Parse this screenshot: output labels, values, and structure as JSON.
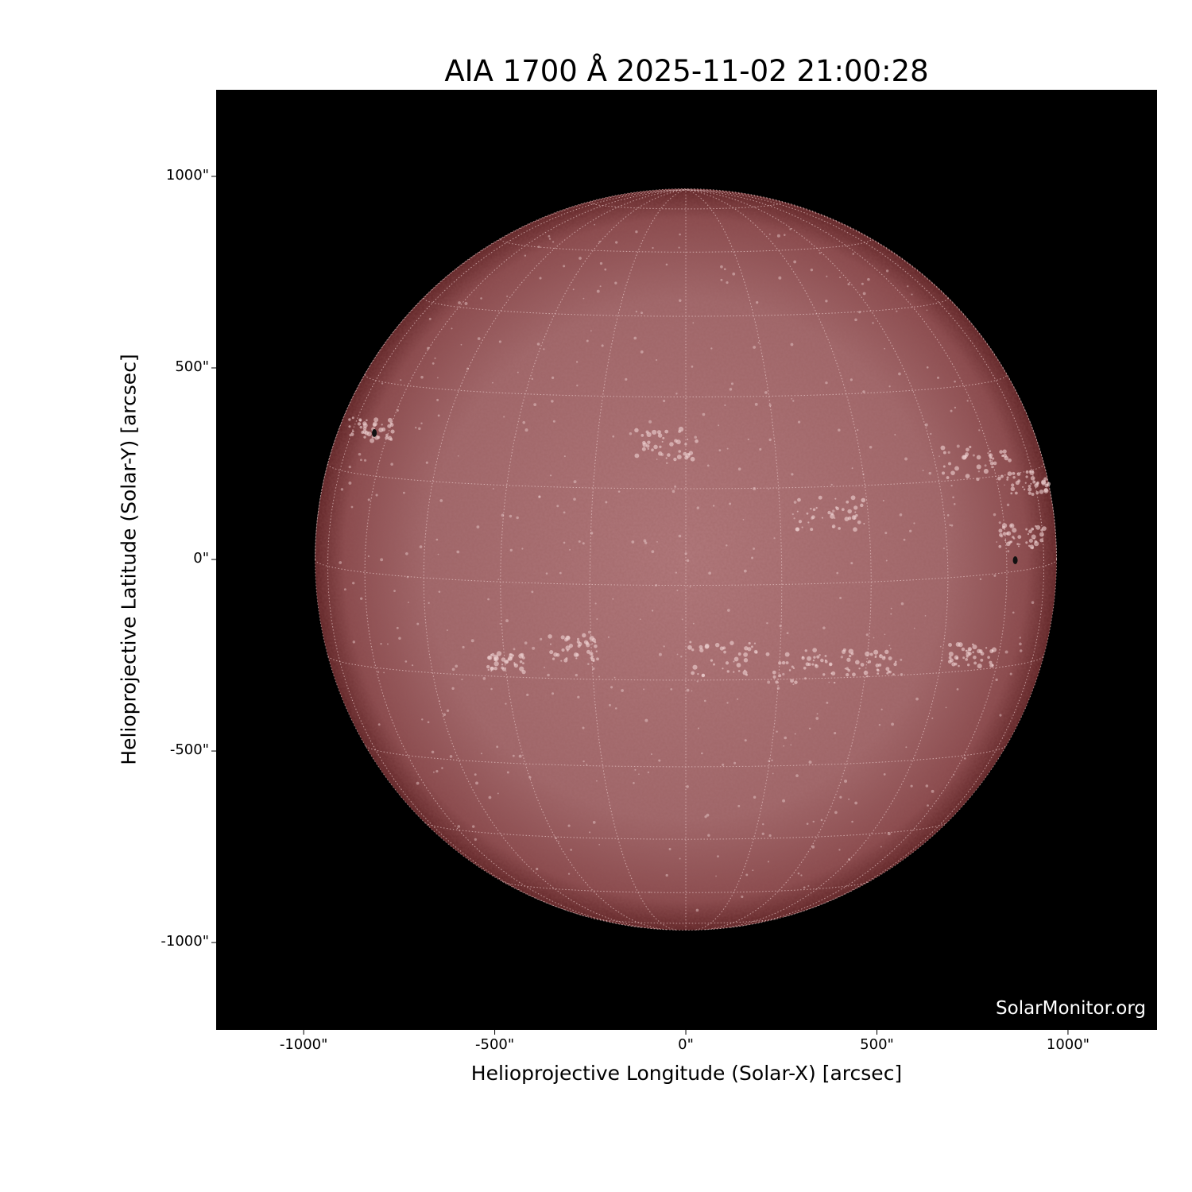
{
  "title": "AIA 1700 Å 2025-11-02 21:00:28",
  "watermark": "SolarMonitor.org",
  "chart_data": {
    "type": "heatmap",
    "title": "AIA 1700 Å 2025-11-02 21:00:28",
    "xlabel": "Helioprojective Longitude (Solar-X) [arcsec]",
    "ylabel": "Helioprojective Latitude (Solar-Y) [arcsec]",
    "xlim": [
      -1229,
      1233
    ],
    "ylim": [
      -1228,
      1226
    ],
    "xticks": [
      -1000,
      -500,
      0,
      500,
      1000
    ],
    "yticks": [
      1000,
      500,
      0,
      -500,
      -1000
    ],
    "xtick_labels": [
      "-1000\"",
      "-500\"",
      "0\"",
      "500\"",
      "1000\""
    ],
    "ytick_labels": [
      "1000\"",
      "500\"",
      "0\"",
      "-500\"",
      "-1000\""
    ],
    "solar_radius_arcsec": 970,
    "grid": "heliographic, dotted, 15° spacing",
    "colormap": "sdoaia1700",
    "colors": {
      "background": "#000000",
      "disk_center": "#b47a7d",
      "disk_limb": "#6e2a2c",
      "plage": "#f0d4d4",
      "grid": "#e8c8c8"
    },
    "sunspots": [
      {
        "x": -815,
        "y": 330
      },
      {
        "x": 862,
        "y": -2
      }
    ]
  }
}
